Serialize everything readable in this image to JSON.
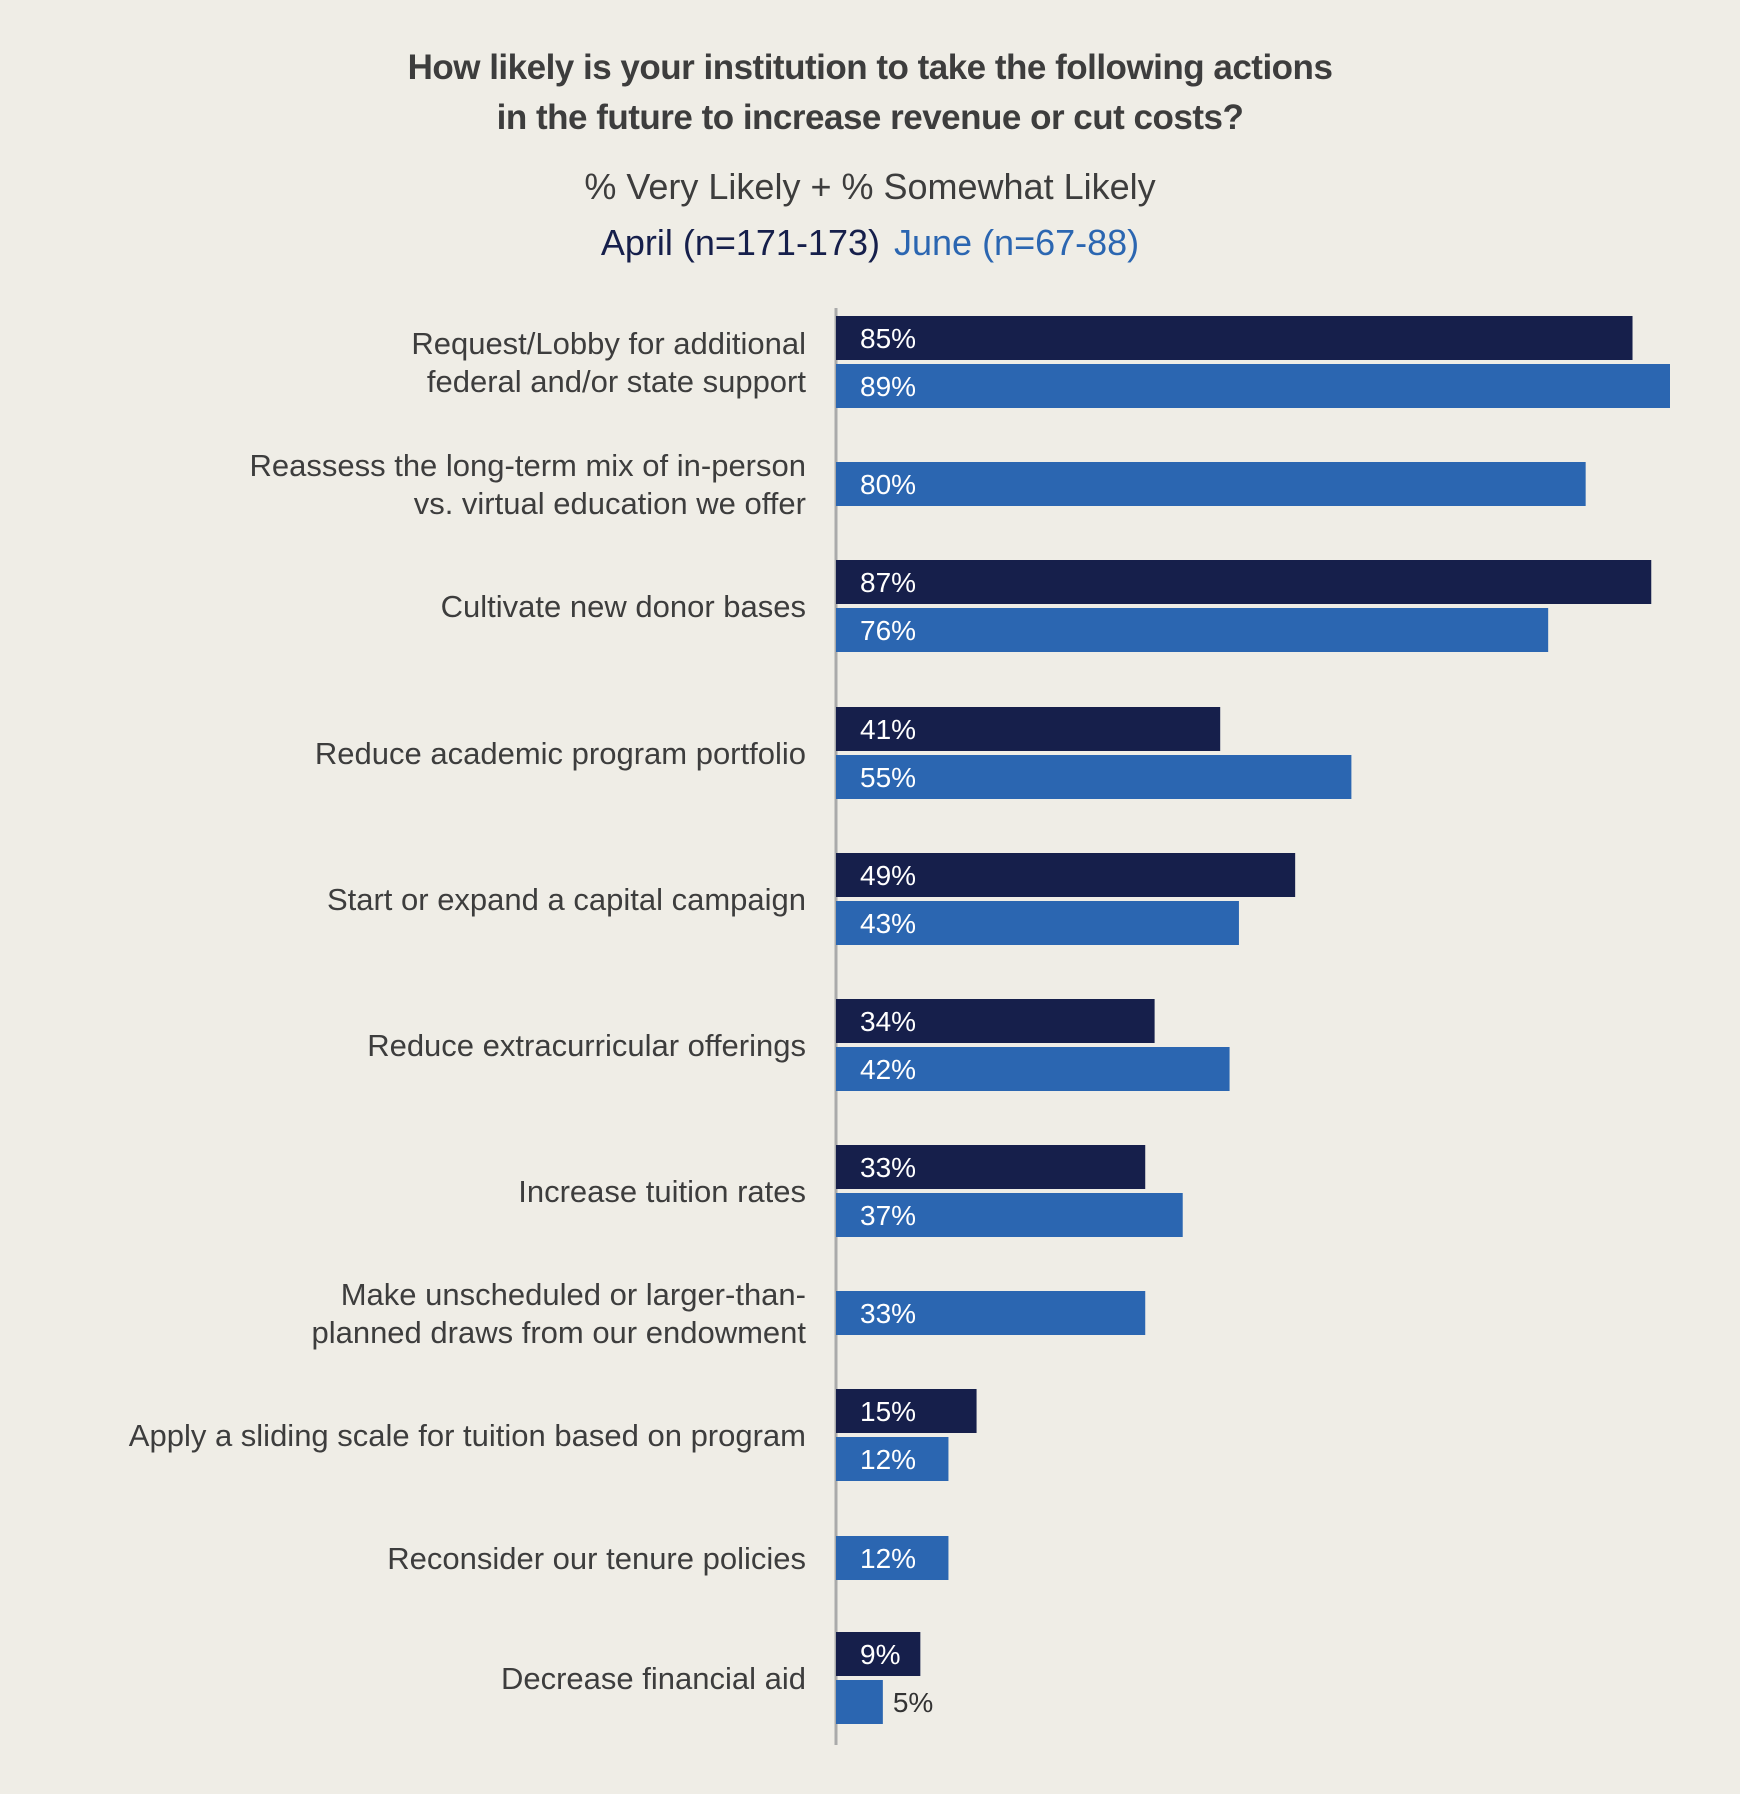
{
  "chart_data": {
    "type": "bar",
    "orientation": "horizontal",
    "title_lines": [
      "How likely is your institution to take the following actions",
      "in the future to increase revenue or cut costs?"
    ],
    "subtitle": "% Very Likely + % Somewhat Likely",
    "legend": {
      "april": "April (n=171-173)",
      "june": "June (n=67-88)"
    },
    "categories": [
      [
        "Request/Lobby for additional",
        "federal and/or state support"
      ],
      [
        "Reassess the long-term mix of in-person",
        "vs. virtual education we offer"
      ],
      [
        "Cultivate new donor bases"
      ],
      [
        "Reduce academic program portfolio"
      ],
      [
        "Start or expand a capital campaign"
      ],
      [
        "Reduce extracurricular offerings"
      ],
      [
        "Increase tuition rates"
      ],
      [
        "Make unscheduled or larger-than-",
        "planned draws from our endowment"
      ],
      [
        "Apply a sliding scale for tuition based on program"
      ],
      [
        "Reconsider our tenure policies"
      ],
      [
        "Decrease financial aid"
      ]
    ],
    "series": [
      {
        "name": "April (n=171-173)",
        "color": "#161f4b",
        "values": [
          85,
          null,
          87,
          41,
          49,
          34,
          33,
          null,
          15,
          null,
          9
        ],
        "labels": [
          "85%",
          null,
          "87%",
          "41%",
          "49%",
          "34%",
          "33%",
          null,
          "15%",
          null,
          "9%"
        ]
      },
      {
        "name": "June (n=67-88)",
        "color": "#2b66b1",
        "values": [
          89,
          80,
          76,
          55,
          43,
          42,
          37,
          33,
          12,
          12,
          5
        ],
        "labels": [
          "89%",
          "80%",
          "76%",
          "55%",
          "43%",
          "42%",
          "37%",
          "33%",
          "12%",
          "12%",
          "5%"
        ]
      }
    ],
    "xlim": [
      0,
      89
    ],
    "grid": false,
    "legend_placement": "top-center"
  }
}
